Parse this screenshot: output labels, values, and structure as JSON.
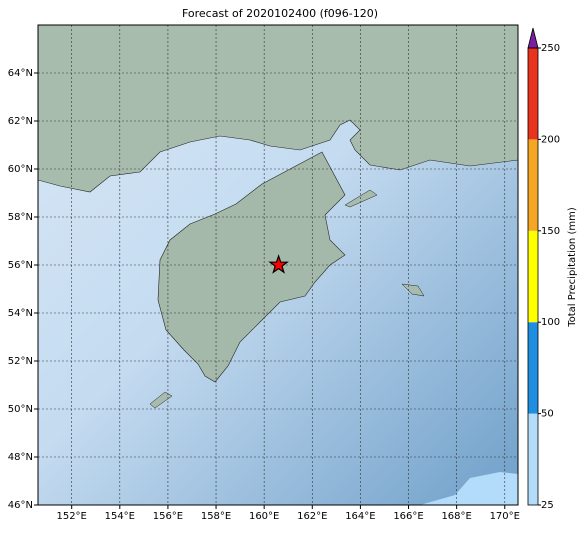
{
  "chart_data": {
    "type": "map",
    "title": "Forecast of 2020102400 (f096-120)",
    "xlim": [
      150.6,
      170.55
    ],
    "ylim": [
      46,
      66
    ],
    "xticks": [
      {
        "value": 152,
        "label": "152°E"
      },
      {
        "value": 154,
        "label": "154°E"
      },
      {
        "value": 156,
        "label": "156°E"
      },
      {
        "value": 158,
        "label": "158°E"
      },
      {
        "value": 160,
        "label": "160°E"
      },
      {
        "value": 162,
        "label": "162°E"
      },
      {
        "value": 164,
        "label": "164°E"
      },
      {
        "value": 166,
        "label": "166°E"
      },
      {
        "value": 168,
        "label": "168°E"
      },
      {
        "value": 170,
        "label": "170°E"
      }
    ],
    "yticks": [
      {
        "value": 46,
        "label": "46°N"
      },
      {
        "value": 48,
        "label": "48°N"
      },
      {
        "value": 50,
        "label": "50°N"
      },
      {
        "value": 52,
        "label": "52°N"
      },
      {
        "value": 54,
        "label": "54°N"
      },
      {
        "value": 56,
        "label": "56°N"
      },
      {
        "value": 58,
        "label": "58°N"
      },
      {
        "value": 60,
        "label": "60°N"
      },
      {
        "value": 62,
        "label": "62°N"
      },
      {
        "value": 64,
        "label": "64°N"
      }
    ],
    "grid": true,
    "markers": [
      {
        "lon": 160.6,
        "lat": 56,
        "color": "#ff0000"
      }
    ],
    "colorbar": {
      "label": "Total Precipitation (mm)",
      "ticks": [
        25,
        50,
        100,
        150,
        200,
        250
      ],
      "colors": [
        "#b3dbfa",
        "#1e8ee0",
        "#ffff00",
        "#f5a623",
        "#e8331e"
      ],
      "extend_color": "#7b1fa2"
    }
  }
}
